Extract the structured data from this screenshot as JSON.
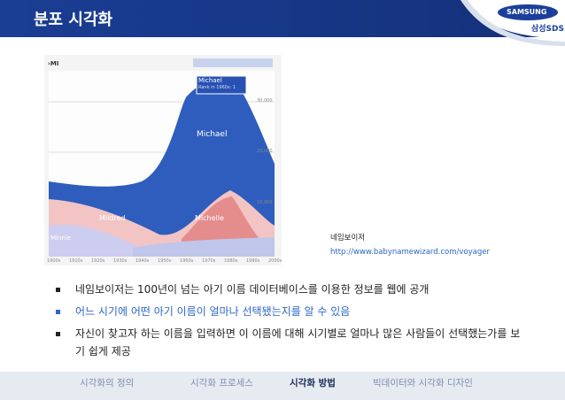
{
  "header": {
    "title": "분포 시각화",
    "logo": "SAMSUNG",
    "logo_sub": "삼성SDS"
  },
  "figure": {
    "query": "›MI",
    "tooltip": {
      "name": "Michael",
      "rank": "Rank in 1960s: 1"
    },
    "labels": [
      "Michael",
      "Mildred",
      "Michelle",
      "Minnie"
    ],
    "y_labels": [
      "30,000",
      "20,000",
      "10,000"
    ],
    "decades": [
      "1900s",
      "1910s",
      "1920s",
      "1930s",
      "1940s",
      "1950s",
      "1960s",
      "1970s",
      "1980s",
      "1990s",
      "2000s"
    ],
    "caption": "네임보이저",
    "link": "http://www.babynamewizard.com/voyager"
  },
  "bullets": [
    "네임보이저는 100년이 넘는 아기 이름 데이터베이스를 이용한 정보를 웹에 공개",
    "어느 시기에 어떤 아기 이름이 얼마나 선택됐는지를 알 수 있음",
    "자신이 찾고자 하는 이름을 입력하면 이 이름에 대해 시기별로 얼마나 많은 사람들이 선택했는가를 보기 쉽게 제공"
  ],
  "nav": [
    "시각화의 정의",
    "시각화 프로세스",
    "시각화 방법",
    "빅데이터와 시각화 디자인"
  ]
}
